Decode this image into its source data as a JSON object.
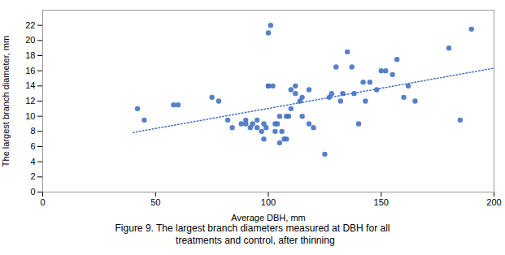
{
  "chart_data": {
    "type": "scatter",
    "xlabel": "Average DBH, mm",
    "ylabel": "The largest branch diameter, mm",
    "caption": [
      "Figure 9. The largest branch diameters measured at DBH for all",
      "  treatments and control, after thinning"
    ],
    "xlim": [
      0,
      200
    ],
    "ylim": [
      0,
      24
    ],
    "xticks": [
      0,
      50,
      100,
      150,
      200
    ],
    "yticks": [
      0,
      2,
      4,
      6,
      8,
      10,
      12,
      14,
      16,
      18,
      20,
      22
    ],
    "grid": false,
    "series": [
      {
        "type": "scatter",
        "color": "#4472C4",
        "marker": "circle",
        "x": [
          42,
          45,
          58,
          60,
          75,
          78,
          82,
          84,
          88,
          90,
          90,
          92,
          93,
          95,
          95,
          97,
          98,
          98,
          99,
          100,
          100,
          100,
          101,
          102,
          103,
          103,
          104,
          105,
          105,
          106,
          107,
          108,
          108,
          109,
          110,
          110,
          112,
          112,
          114,
          115,
          115,
          118,
          118,
          120,
          125,
          127,
          128,
          130,
          132,
          133,
          135,
          137,
          138,
          140,
          142,
          143,
          145,
          148,
          150,
          152,
          155,
          157,
          160,
          162,
          165,
          180,
          185,
          190
        ],
        "values": [
          11,
          9.5,
          11.5,
          11.5,
          12.5,
          12,
          9.5,
          8.5,
          9,
          9,
          9.5,
          8.5,
          9,
          8.5,
          9.5,
          8,
          7,
          9,
          8.5,
          14,
          14,
          21,
          22,
          14,
          8,
          9,
          9,
          10,
          6.5,
          8,
          7,
          7,
          10,
          10,
          11,
          13.5,
          14,
          13,
          12,
          12.5,
          10,
          9,
          13.5,
          8.5,
          5,
          12.5,
          13,
          16.5,
          12,
          13,
          18.5,
          16.5,
          13,
          9,
          14.5,
          12,
          14.5,
          13.5,
          16,
          16,
          15.5,
          17.5,
          12.5,
          14,
          12,
          19,
          9.5,
          21.5
        ]
      },
      {
        "type": "line",
        "color": "#4472C4",
        "line_style": "dotted",
        "x": [
          40,
          200
        ],
        "values": [
          7.8549,
          16.3477
        ]
      }
    ]
  }
}
